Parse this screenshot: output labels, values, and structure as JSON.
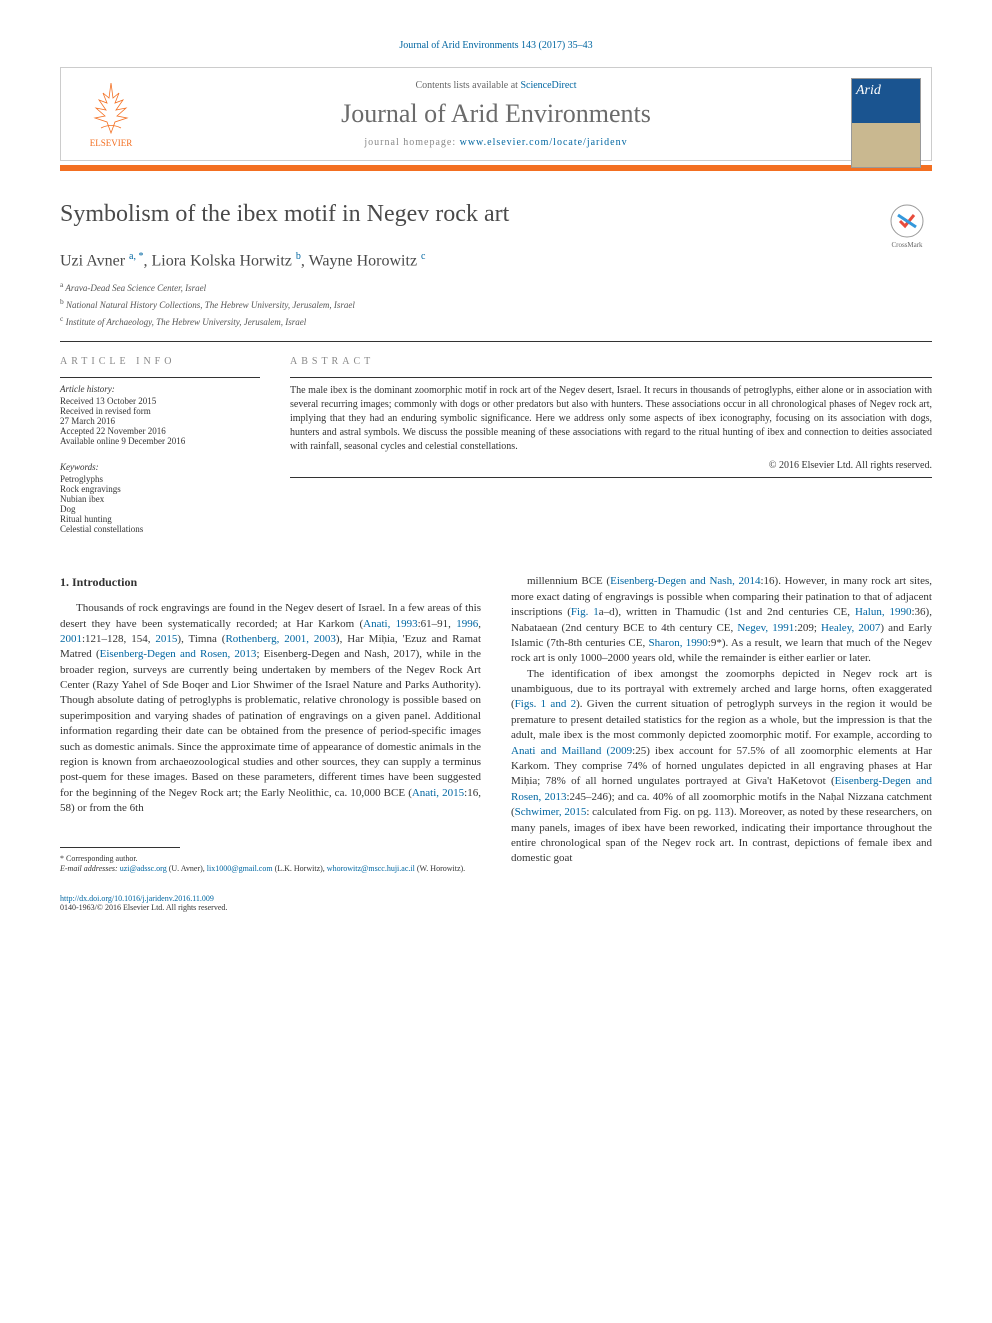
{
  "colors": {
    "link": "#0066a1",
    "accent": "#f36f21",
    "text": "#333333",
    "muted": "#888888",
    "journal_title": "#6b6b6b"
  },
  "citation": "Journal of Arid Environments 143 (2017) 35–43",
  "header": {
    "contents_prefix": "Contents lists available at ",
    "contents_link": "ScienceDirect",
    "journal_name": "Journal of Arid Environments",
    "homepage_prefix": "journal homepage: ",
    "homepage_url": "www.elsevier.com/locate/jaridenv",
    "publisher": "ELSEVIER",
    "cover_label": "Arid"
  },
  "article": {
    "title": "Symbolism of the ibex motif in Negev rock art",
    "crossmark": "CrossMark",
    "authors_html": "Uzi Avner <sup>a, *</sup>, Liora Kolska Horwitz <sup>b</sup>, Wayne Horowitz <sup>c</sup>",
    "affiliations": [
      {
        "sup": "a",
        "text": "Arava-Dead Sea Science Center, Israel"
      },
      {
        "sup": "b",
        "text": "National Natural History Collections, The Hebrew University, Jerusalem, Israel"
      },
      {
        "sup": "c",
        "text": "Institute of Archaeology, The Hebrew University, Jerusalem, Israel"
      }
    ]
  },
  "info": {
    "label": "ARTICLE INFO",
    "history_label": "Article history:",
    "history": [
      "Received 13 October 2015",
      "Received in revised form",
      "27 March 2016",
      "Accepted 22 November 2016",
      "Available online 9 December 2016"
    ],
    "keywords_label": "Keywords:",
    "keywords": [
      "Petroglyphs",
      "Rock engravings",
      "Nubian ibex",
      "Dog",
      "Ritual hunting",
      "Celestial constellations"
    ]
  },
  "abstract": {
    "label": "ABSTRACT",
    "text": "The male ibex is the dominant zoomorphic motif in rock art of the Negev desert, Israel. It recurs in thousands of petroglyphs, either alone or in association with several recurring images; commonly with dogs or other predators but also with hunters. These associations occur in all chronological phases of Negev rock art, implying that they had an enduring symbolic significance. Here we address only some aspects of ibex iconography, focusing on its association with dogs, hunters and astral symbols. We discuss the possible meaning of these associations with regard to the ritual hunting of ibex and connection to deities associated with rainfall, seasonal cycles and celestial constellations.",
    "copyright": "© 2016 Elsevier Ltd. All rights reserved."
  },
  "body": {
    "section_heading": "1. Introduction",
    "col1_p1": "Thousands of rock engravings are found in the Negev desert of Israel. In a few areas of this desert they have been systematically recorded; at Har Karkom (<a>Anati, 1993</a>:61–91, <a>1996</a>, <a>2001</a>:121–128, 154, <a>2015</a>), Timna (<a>Rothenberg, 2001, 2003</a>), Har Miḥia, 'Ezuz and Ramat Matred (<a>Eisenberg-Degen and Rosen, 2013</a>; Eisenberg-Degen and Nash, 2017), while in the broader region, surveys are currently being undertaken by members of the Negev Rock Art Center (Razy Yahel of Sde Boqer and Lior Shwimer of the Israel Nature and Parks Authority). Though absolute dating of petroglyphs is problematic, relative chronology is possible based on superimposition and varying shades of patination of engravings on a given panel. Additional information regarding their date can be obtained from the presence of period-specific images such as domestic animals. Since the approximate time of appearance of domestic animals in the region is known from archaeozoological studies and other sources, they can supply a terminus post-quem for these images. Based on these parameters, different times have been suggested for the beginning of the Negev Rock art; the Early Neolithic, ca. 10,000 BCE (<a>Anati, 2015</a>:16, 58) or from the 6th",
    "col2_p1": "millennium BCE (<a>Eisenberg-Degen and Nash, 2014</a>:16). However, in many rock art sites, more exact dating of engravings is possible when comparing their patination to that of adjacent inscriptions (<a>Fig. 1</a>a–d), written in Thamudic (1st and 2nd centuries CE, <a>Halun, 1990</a>:36), Nabataean (2nd century BCE to 4th century CE, <a>Negev, 1991</a>:209; <a>Healey, 2007</a>) and Early Islamic (7th-8th centuries CE, <a>Sharon, 1990</a>:9*). As a result, we learn that much of the Negev rock art is only 1000–2000 years old, while the remainder is either earlier or later.",
    "col2_p2": "The identification of ibex amongst the zoomorphs depicted in Negev rock art is unambiguous, due to its portrayal with extremely arched and large horns, often exaggerated (<a>Figs. 1 and 2</a>). Given the current situation of petroglyph surveys in the region it would be premature to present detailed statistics for the region as a whole, but the impression is that the adult, male ibex is the most commonly depicted zoomorphic motif. For example, according to <a>Anati and Mailland (2009</a>:25) ibex account for 57.5% of all zoomorphic elements at Har Karkom. They comprise 74% of horned ungulates depicted in all engraving phases at Har Miḥia; 78% of all horned ungulates portrayed at Giva't HaKetovot (<a>Eisenberg-Degen and Rosen, 2013</a>:245–246); and ca. 40% of all zoomorphic motifs in the Naḥal Nizzana catchment (<a>Schwimer, 2015</a>: calculated from Fig. on pg. 113). Moreover, as noted by these researchers, on many panels, images of ibex have been reworked, indicating their importance throughout the entire chronological span of the Negev rock art. In contrast, depictions of female ibex and domestic goat"
  },
  "footnote": {
    "corr": "* Corresponding author.",
    "email_label": "E-mail addresses: ",
    "emails": "<a>uzi@adssc.org</a> (U. Avner), <a>lix1000@gmail.com</a> (L.K. Horwitz), <a>whorowitz@mscc.huji.ac.il</a> (W. Horowitz)."
  },
  "doi": {
    "url": "http://dx.doi.org/10.1016/j.jaridenv.2016.11.009",
    "issn_line": "0140-1963/© 2016 Elsevier Ltd. All rights reserved."
  }
}
